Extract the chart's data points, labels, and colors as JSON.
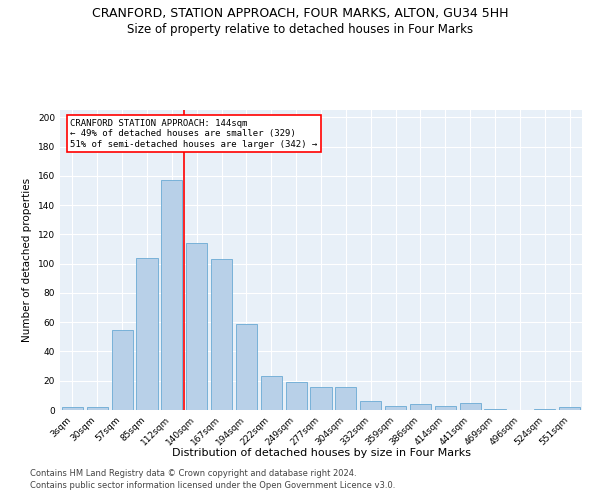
{
  "title": "CRANFORD, STATION APPROACH, FOUR MARKS, ALTON, GU34 5HH",
  "subtitle": "Size of property relative to detached houses in Four Marks",
  "xlabel": "Distribution of detached houses by size in Four Marks",
  "ylabel": "Number of detached properties",
  "categories": [
    "3sqm",
    "30sqm",
    "57sqm",
    "85sqm",
    "112sqm",
    "140sqm",
    "167sqm",
    "194sqm",
    "222sqm",
    "249sqm",
    "277sqm",
    "304sqm",
    "332sqm",
    "359sqm",
    "386sqm",
    "414sqm",
    "441sqm",
    "469sqm",
    "496sqm",
    "524sqm",
    "551sqm"
  ],
  "values": [
    2,
    2,
    55,
    104,
    157,
    114,
    103,
    59,
    23,
    19,
    16,
    16,
    6,
    3,
    4,
    3,
    5,
    1,
    0,
    1,
    2
  ],
  "bar_color": "#b8d0e8",
  "bar_edge_color": "#6aaad4",
  "vline_color": "red",
  "vline_x_index": 5,
  "annotation_text": "CRANFORD STATION APPROACH: 144sqm\n← 49% of detached houses are smaller (329)\n51% of semi-detached houses are larger (342) →",
  "annotation_box_color": "white",
  "annotation_box_edgecolor": "red",
  "ylim": [
    0,
    205
  ],
  "yticks": [
    0,
    20,
    40,
    60,
    80,
    100,
    120,
    140,
    160,
    180,
    200
  ],
  "background_color": "#e8f0f8",
  "footer_line1": "Contains HM Land Registry data © Crown copyright and database right 2024.",
  "footer_line2": "Contains public sector information licensed under the Open Government Licence v3.0.",
  "title_fontsize": 9,
  "subtitle_fontsize": 8.5,
  "xlabel_fontsize": 8,
  "ylabel_fontsize": 7.5,
  "tick_fontsize": 6.5,
  "annotation_fontsize": 6.5,
  "footer_fontsize": 6
}
